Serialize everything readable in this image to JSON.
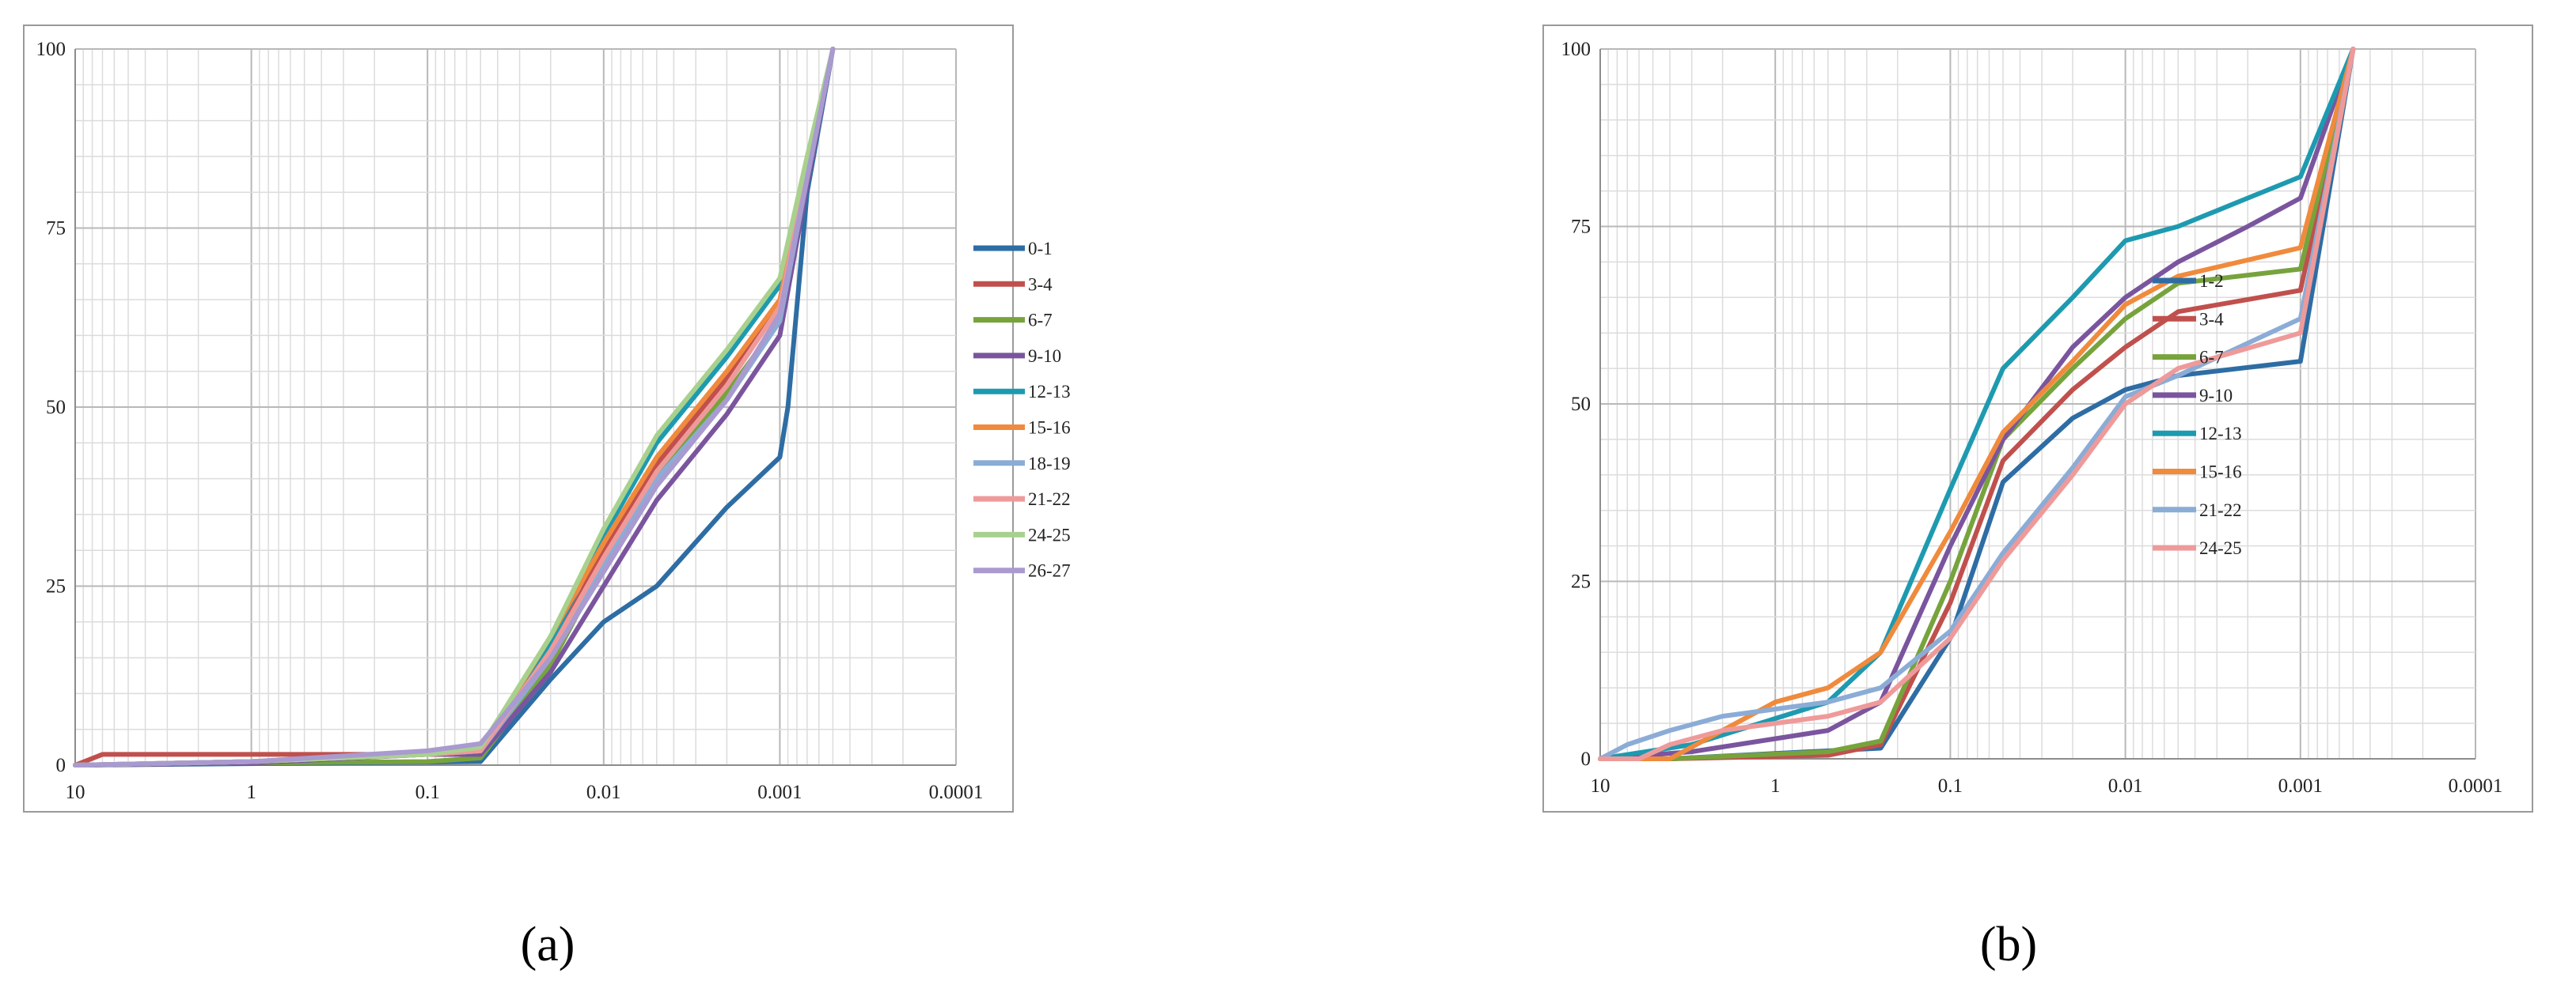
{
  "chart_data": [
    {
      "panel_label": "a",
      "type": "line",
      "xscale": "log",
      "xreverse": true,
      "xlim": [
        10,
        0.0001
      ],
      "ylim": [
        0,
        100
      ],
      "x_ticks": [
        "10",
        "1",
        "0.1",
        "0.01",
        "0.001",
        "0.0001"
      ],
      "y_ticks": [
        "0",
        "25",
        "50",
        "75",
        "100"
      ],
      "legend_position": "right",
      "grid": true,
      "series": [
        {
          "name": "0-1",
          "color": "#2e6da4",
          "points": [
            [
              10,
              0
            ],
            [
              0.05,
              0.5
            ],
            [
              0.02,
              12
            ],
            [
              0.01,
              20
            ],
            [
              0.005,
              25
            ],
            [
              0.002,
              36
            ],
            [
              0.001,
              43
            ],
            [
              0.0009,
              50
            ],
            [
              0.0007,
              80
            ],
            [
              0.0005,
              100
            ]
          ]
        },
        {
          "name": "3-4",
          "color": "#c0504d",
          "points": [
            [
              10,
              0
            ],
            [
              7,
              1.5
            ],
            [
              0.05,
              1.5
            ],
            [
              0.02,
              16
            ],
            [
              0.01,
              30
            ],
            [
              0.005,
              42
            ],
            [
              0.002,
              54
            ],
            [
              0.001,
              64
            ],
            [
              0.0007,
              83
            ],
            [
              0.0005,
              100
            ]
          ]
        },
        {
          "name": "6-7",
          "color": "#77a33d",
          "points": [
            [
              10,
              0
            ],
            [
              1,
              0.3
            ],
            [
              0.1,
              0.5
            ],
            [
              0.05,
              1
            ],
            [
              0.02,
              14
            ],
            [
              0.01,
              28
            ],
            [
              0.005,
              40
            ],
            [
              0.002,
              52
            ],
            [
              0.001,
              62
            ],
            [
              0.0007,
              82
            ],
            [
              0.0005,
              100
            ]
          ]
        },
        {
          "name": "9-10",
          "color": "#7a559e",
          "points": [
            [
              10,
              0
            ],
            [
              1,
              0.3
            ],
            [
              0.1,
              1.5
            ],
            [
              0.05,
              1.5
            ],
            [
              0.02,
              13
            ],
            [
              0.01,
              25
            ],
            [
              0.005,
              37
            ],
            [
              0.002,
              49
            ],
            [
              0.001,
              60
            ],
            [
              0.0007,
              81
            ],
            [
              0.0005,
              100
            ]
          ]
        },
        {
          "name": "12-13",
          "color": "#1e9ab0",
          "points": [
            [
              10,
              0
            ],
            [
              1,
              0.5
            ],
            [
              0.1,
              1.5
            ],
            [
              0.05,
              2
            ],
            [
              0.02,
              17
            ],
            [
              0.01,
              32
            ],
            [
              0.005,
              45
            ],
            [
              0.002,
              57
            ],
            [
              0.001,
              67
            ],
            [
              0.0007,
              84
            ],
            [
              0.0005,
              100
            ]
          ]
        },
        {
          "name": "15-16",
          "color": "#f08a3c",
          "points": [
            [
              10,
              0
            ],
            [
              1,
              0.5
            ],
            [
              0.1,
              1.5
            ],
            [
              0.05,
              2
            ],
            [
              0.02,
              18
            ],
            [
              0.01,
              31
            ],
            [
              0.005,
              43
            ],
            [
              0.002,
              55
            ],
            [
              0.001,
              65
            ],
            [
              0.0007,
              83
            ],
            [
              0.0005,
              100
            ]
          ]
        },
        {
          "name": "18-19",
          "color": "#8bacd6",
          "points": [
            [
              10,
              0
            ],
            [
              1,
              0.5
            ],
            [
              0.1,
              1.5
            ],
            [
              0.05,
              2
            ],
            [
              0.02,
              15
            ],
            [
              0.01,
              28
            ],
            [
              0.005,
              40
            ],
            [
              0.002,
              51
            ],
            [
              0.001,
              62
            ],
            [
              0.0007,
              82
            ],
            [
              0.0005,
              100
            ]
          ]
        },
        {
          "name": "21-22",
          "color": "#ef9a9a",
          "points": [
            [
              10,
              0
            ],
            [
              1,
              0.5
            ],
            [
              0.1,
              1.5
            ],
            [
              0.05,
              2
            ],
            [
              0.02,
              16
            ],
            [
              0.01,
              29
            ],
            [
              0.005,
              41
            ],
            [
              0.002,
              53
            ],
            [
              0.001,
              64
            ],
            [
              0.0007,
              83
            ],
            [
              0.0005,
              100
            ]
          ]
        },
        {
          "name": "24-25",
          "color": "#a9d18e",
          "points": [
            [
              10,
              0
            ],
            [
              1,
              0.5
            ],
            [
              0.1,
              1.5
            ],
            [
              0.05,
              2.5
            ],
            [
              0.02,
              18
            ],
            [
              0.01,
              33
            ],
            [
              0.005,
              46
            ],
            [
              0.002,
              58
            ],
            [
              0.001,
              68
            ],
            [
              0.0007,
              85
            ],
            [
              0.0005,
              100
            ]
          ]
        },
        {
          "name": "26-27",
          "color": "#a99ad0",
          "points": [
            [
              10,
              0
            ],
            [
              1,
              0.5
            ],
            [
              0.1,
              2
            ],
            [
              0.05,
              3
            ],
            [
              0.02,
              15
            ],
            [
              0.01,
              27
            ],
            [
              0.005,
              39
            ],
            [
              0.002,
              51
            ],
            [
              0.001,
              63
            ],
            [
              0.0007,
              82
            ],
            [
              0.0005,
              100
            ]
          ]
        }
      ]
    },
    {
      "panel_label": "b",
      "type": "line",
      "xscale": "log",
      "xreverse": true,
      "xlim": [
        10,
        0.0001
      ],
      "ylim": [
        0,
        100
      ],
      "x_ticks": [
        "10",
        "1",
        "0.1",
        "0.01",
        "0.001",
        "0.0001"
      ],
      "y_ticks": [
        "0",
        "25",
        "50",
        "75",
        "100"
      ],
      "legend_position": "right",
      "grid": true,
      "series": [
        {
          "name": "1-2",
          "color": "#2e6da4",
          "points": [
            [
              10,
              0
            ],
            [
              4,
              0
            ],
            [
              0.25,
              1.5
            ],
            [
              0.1,
              17
            ],
            [
              0.05,
              39
            ],
            [
              0.02,
              48
            ],
            [
              0.01,
              52
            ],
            [
              0.005,
              54
            ],
            [
              0.001,
              56
            ],
            [
              0.0005,
              100
            ]
          ]
        },
        {
          "name": "3-4",
          "color": "#c0504d",
          "points": [
            [
              10,
              0
            ],
            [
              4,
              0
            ],
            [
              0.5,
              0.5
            ],
            [
              0.25,
              2
            ],
            [
              0.1,
              22
            ],
            [
              0.05,
              42
            ],
            [
              0.02,
              52
            ],
            [
              0.01,
              58
            ],
            [
              0.005,
              63
            ],
            [
              0.001,
              66
            ],
            [
              0.0005,
              100
            ]
          ]
        },
        {
          "name": "6-7",
          "color": "#77a33d",
          "points": [
            [
              10,
              0
            ],
            [
              4,
              0
            ],
            [
              0.5,
              1
            ],
            [
              0.25,
              2.5
            ],
            [
              0.1,
              25
            ],
            [
              0.05,
              45
            ],
            [
              0.02,
              55
            ],
            [
              0.01,
              62
            ],
            [
              0.005,
              67
            ],
            [
              0.001,
              69
            ],
            [
              0.0005,
              100
            ]
          ]
        },
        {
          "name": "9-10",
          "color": "#7a559e",
          "points": [
            [
              10,
              0
            ],
            [
              3,
              1
            ],
            [
              0.5,
              4
            ],
            [
              0.25,
              8
            ],
            [
              0.1,
              30
            ],
            [
              0.05,
              45
            ],
            [
              0.02,
              58
            ],
            [
              0.01,
              65
            ],
            [
              0.005,
              70
            ],
            [
              0.002,
              75
            ],
            [
              0.001,
              79
            ],
            [
              0.0005,
              100
            ]
          ]
        },
        {
          "name": "12-13",
          "color": "#1e9ab0",
          "points": [
            [
              10,
              0
            ],
            [
              3,
              2
            ],
            [
              0.5,
              8
            ],
            [
              0.25,
              15
            ],
            [
              0.1,
              38
            ],
            [
              0.05,
              55
            ],
            [
              0.02,
              65
            ],
            [
              0.01,
              73
            ],
            [
              0.005,
              75
            ],
            [
              0.002,
              79
            ],
            [
              0.001,
              82
            ],
            [
              0.0005,
              100
            ]
          ]
        },
        {
          "name": "15-16",
          "color": "#f08a3c",
          "points": [
            [
              10,
              0
            ],
            [
              4,
              0
            ],
            [
              1,
              8
            ],
            [
              0.5,
              10
            ],
            [
              0.25,
              15
            ],
            [
              0.1,
              32
            ],
            [
              0.05,
              46
            ],
            [
              0.02,
              56
            ],
            [
              0.01,
              64
            ],
            [
              0.005,
              68
            ],
            [
              0.001,
              72
            ],
            [
              0.0005,
              100
            ]
          ]
        },
        {
          "name": "21-22",
          "color": "#8bacd6",
          "points": [
            [
              10,
              0
            ],
            [
              7,
              2
            ],
            [
              4,
              4
            ],
            [
              2,
              6
            ],
            [
              1,
              7
            ],
            [
              0.5,
              8
            ],
            [
              0.25,
              10
            ],
            [
              0.1,
              18
            ],
            [
              0.05,
              29
            ],
            [
              0.02,
              41
            ],
            [
              0.01,
              51
            ],
            [
              0.005,
              54
            ],
            [
              0.001,
              62
            ],
            [
              0.0005,
              100
            ]
          ]
        },
        {
          "name": "24-25",
          "color": "#ef9a9a",
          "points": [
            [
              10,
              0
            ],
            [
              6,
              0
            ],
            [
              4,
              2
            ],
            [
              2,
              4
            ],
            [
              1,
              5
            ],
            [
              0.5,
              6
            ],
            [
              0.25,
              8
            ],
            [
              0.1,
              17
            ],
            [
              0.05,
              28
            ],
            [
              0.02,
              40
            ],
            [
              0.01,
              50
            ],
            [
              0.005,
              55
            ],
            [
              0.001,
              60
            ],
            [
              0.0005,
              100
            ]
          ]
        }
      ]
    }
  ],
  "captions": [
    "(a)",
    "(b)"
  ]
}
